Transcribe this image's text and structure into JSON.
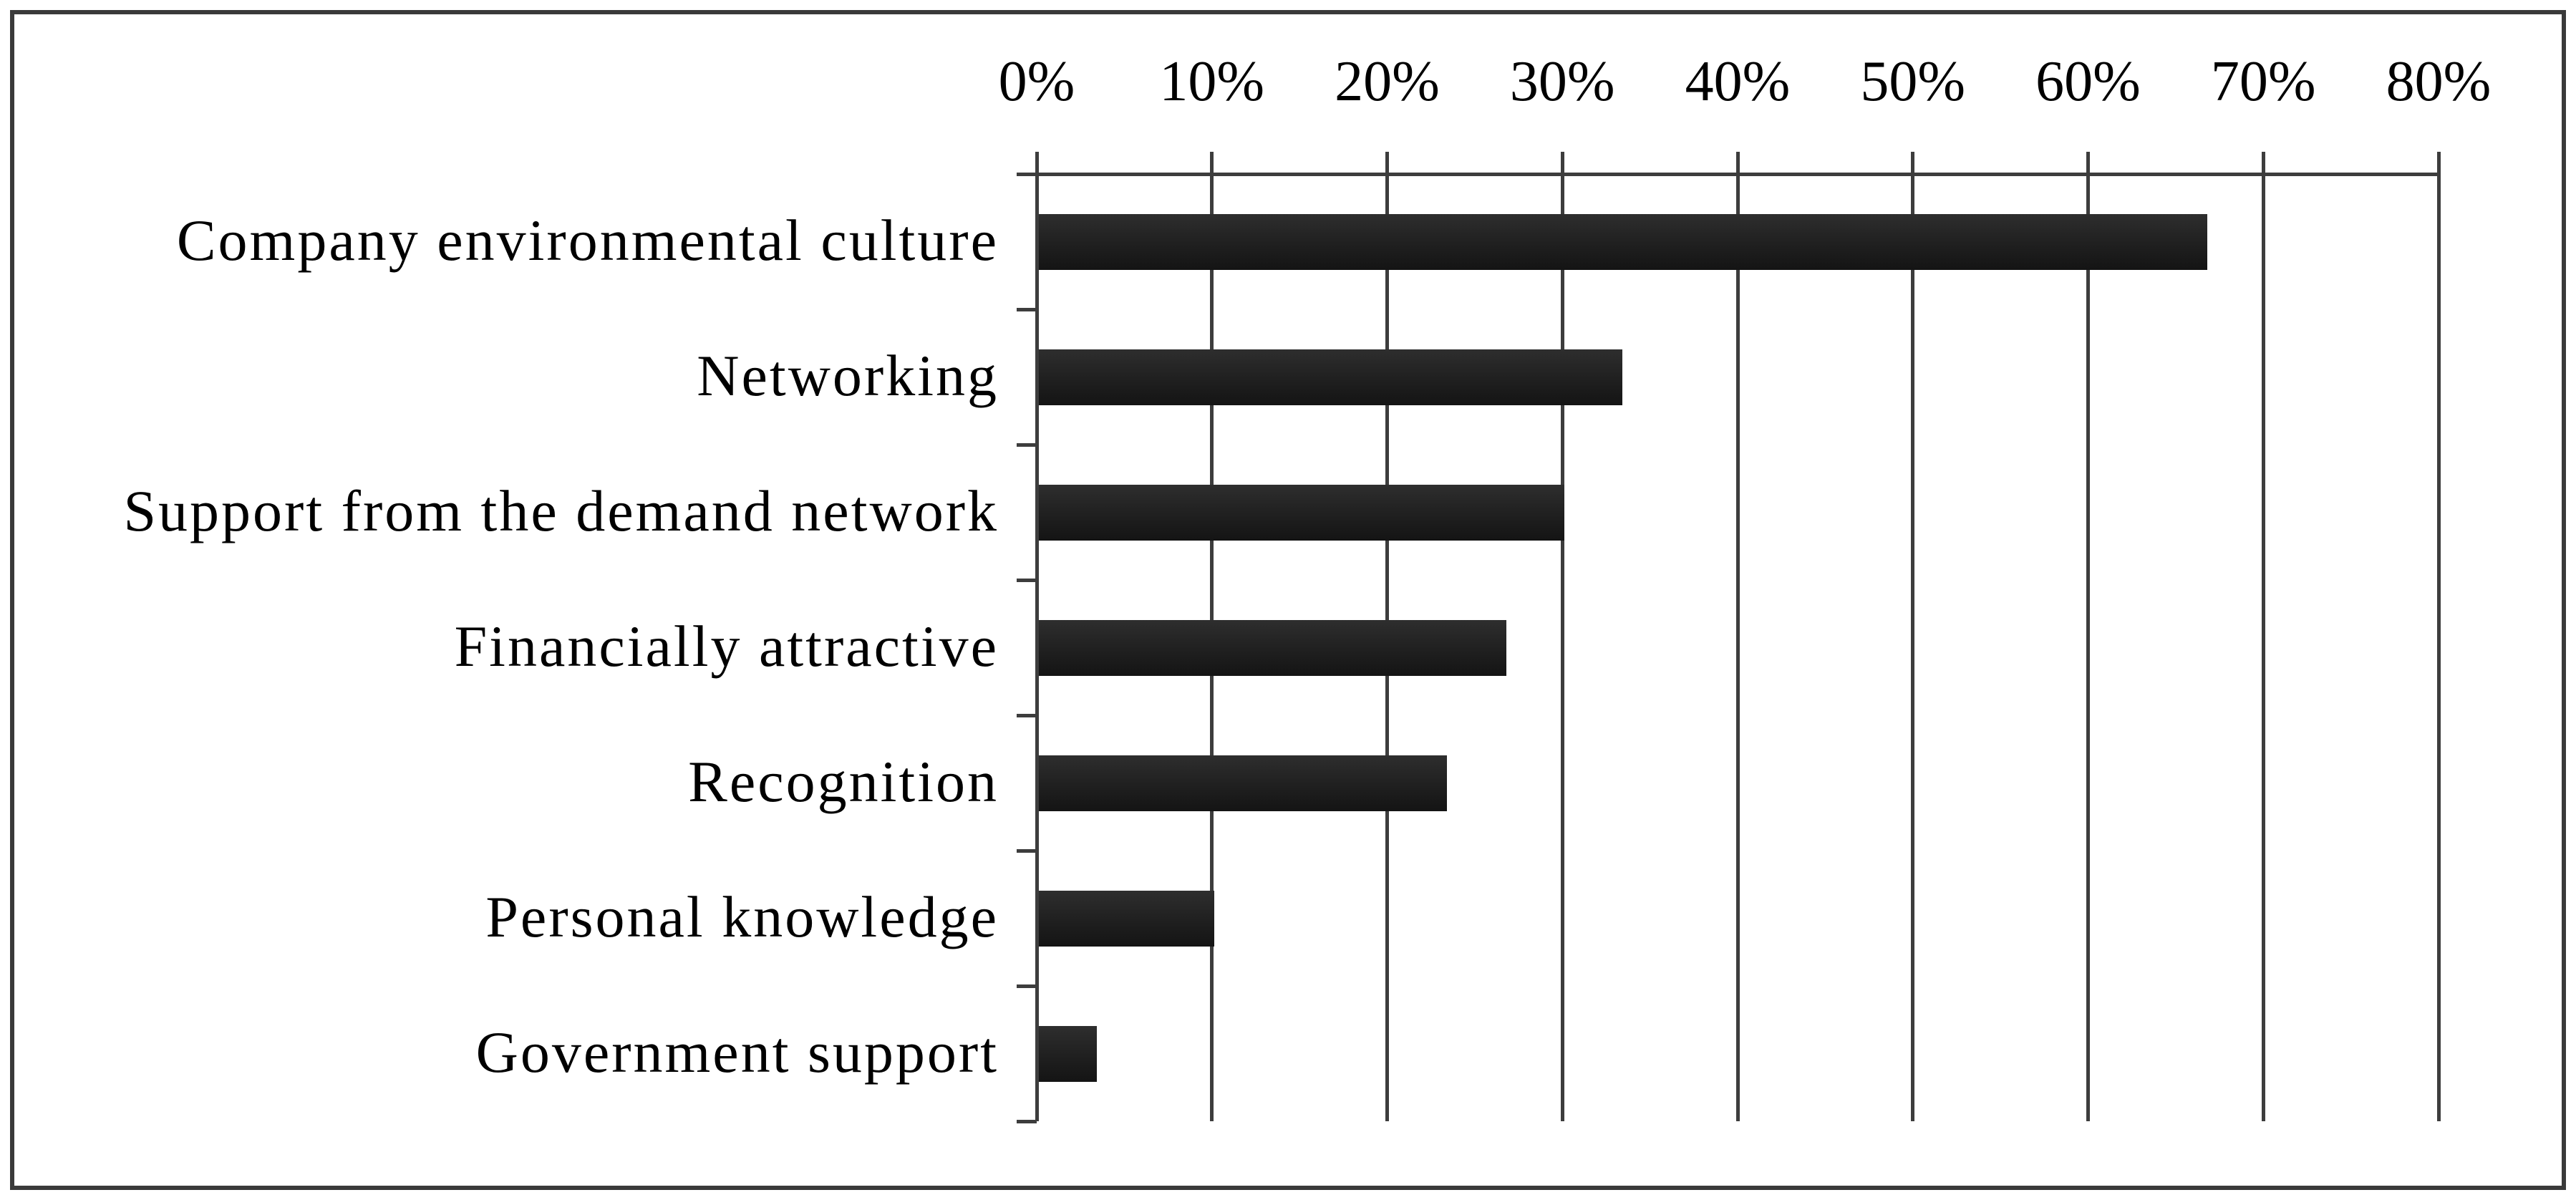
{
  "figure": {
    "description": "Horizontal bar chart with percentage axis on top",
    "background": "#ffffff",
    "border_color": "#3a3a3a"
  },
  "chart_data": {
    "type": "bar",
    "orientation": "horizontal",
    "title": "",
    "categories": [
      "Company environmental culture",
      "Networking",
      "Support from the demand network",
      "Financially attractive",
      "Recognition",
      "Personal knowledge",
      "Government support"
    ],
    "values": [
      66.7,
      33.3,
      30,
      26.7,
      23.3,
      10,
      3.3
    ],
    "value_unit": "%",
    "x_ticks": [
      "0%",
      "10%",
      "20%",
      "30%",
      "40%",
      "50%",
      "60%",
      "70%",
      "80%"
    ],
    "xlim": [
      0,
      80
    ],
    "grid": true,
    "legend": false,
    "axis_position": "top",
    "bar_color_top": "#2e2e2e",
    "bar_color_bottom": "#141414",
    "line_color": "#3d3d3d",
    "text_color": "#000000"
  }
}
